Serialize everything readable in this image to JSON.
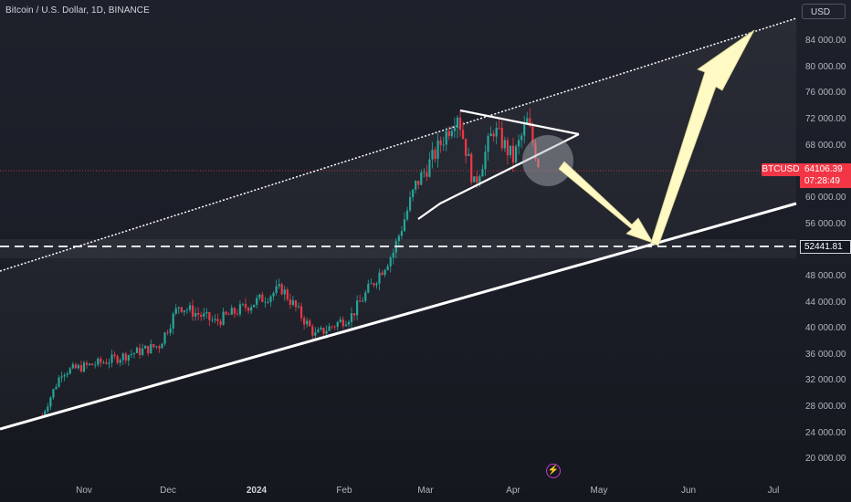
{
  "symbol_title": "Bitcoin / U.S. Dollar, 1D, BINANCE",
  "currency": "USD",
  "ticker_label": "BTCUSD",
  "current_price": "64106.39",
  "countdown": "07:28:49",
  "level_price": "52441.81",
  "icons": {
    "alerts": "lightning-bolt-icon"
  },
  "colors": {
    "up": "#26a69a",
    "down": "#f23645",
    "annotation": "#fff9c4"
  },
  "chart_data": {
    "type": "candlestick",
    "xlabel": "",
    "ylabel": "",
    "ylim": [
      17000,
      88000
    ],
    "x_ticks": [
      "Nov",
      "Dec",
      "2024",
      "Feb",
      "Mar",
      "Apr",
      "May",
      "Jun",
      "Jul"
    ],
    "y_ticks": [
      "84 000.00",
      "80 000.00",
      "76 000.00",
      "72 000.00",
      "68 000.00",
      "60 000.00",
      "56 000.00",
      "48 000.00",
      "44 000.00",
      "40 000.00",
      "36 000.00",
      "32 000.00",
      "28 000.00",
      "24 000.00",
      "20 000.00"
    ],
    "key_points": [
      {
        "date": "2023-10-17",
        "price": 27500
      },
      {
        "date": "2023-10-24",
        "price": 34000
      },
      {
        "date": "2023-11-08",
        "price": 35500
      },
      {
        "date": "2023-11-28",
        "price": 38000
      },
      {
        "date": "2023-12-05",
        "price": 44000
      },
      {
        "date": "2023-12-18",
        "price": 41500
      },
      {
        "date": "2024-01-11",
        "price": 46500
      },
      {
        "date": "2024-01-23",
        "price": 39500
      },
      {
        "date": "2024-02-05",
        "price": 42500
      },
      {
        "date": "2024-02-20",
        "price": 52000
      },
      {
        "date": "2024-02-28",
        "price": 62000
      },
      {
        "date": "2024-03-05",
        "price": 66000
      },
      {
        "date": "2024-03-14",
        "price": 73000
      },
      {
        "date": "2024-03-20",
        "price": 62000
      },
      {
        "date": "2024-03-27",
        "price": 70500
      },
      {
        "date": "2024-04-03",
        "price": 66000
      },
      {
        "date": "2024-04-08",
        "price": 71500
      },
      {
        "date": "2024-04-13",
        "price": 64000
      }
    ]
  }
}
